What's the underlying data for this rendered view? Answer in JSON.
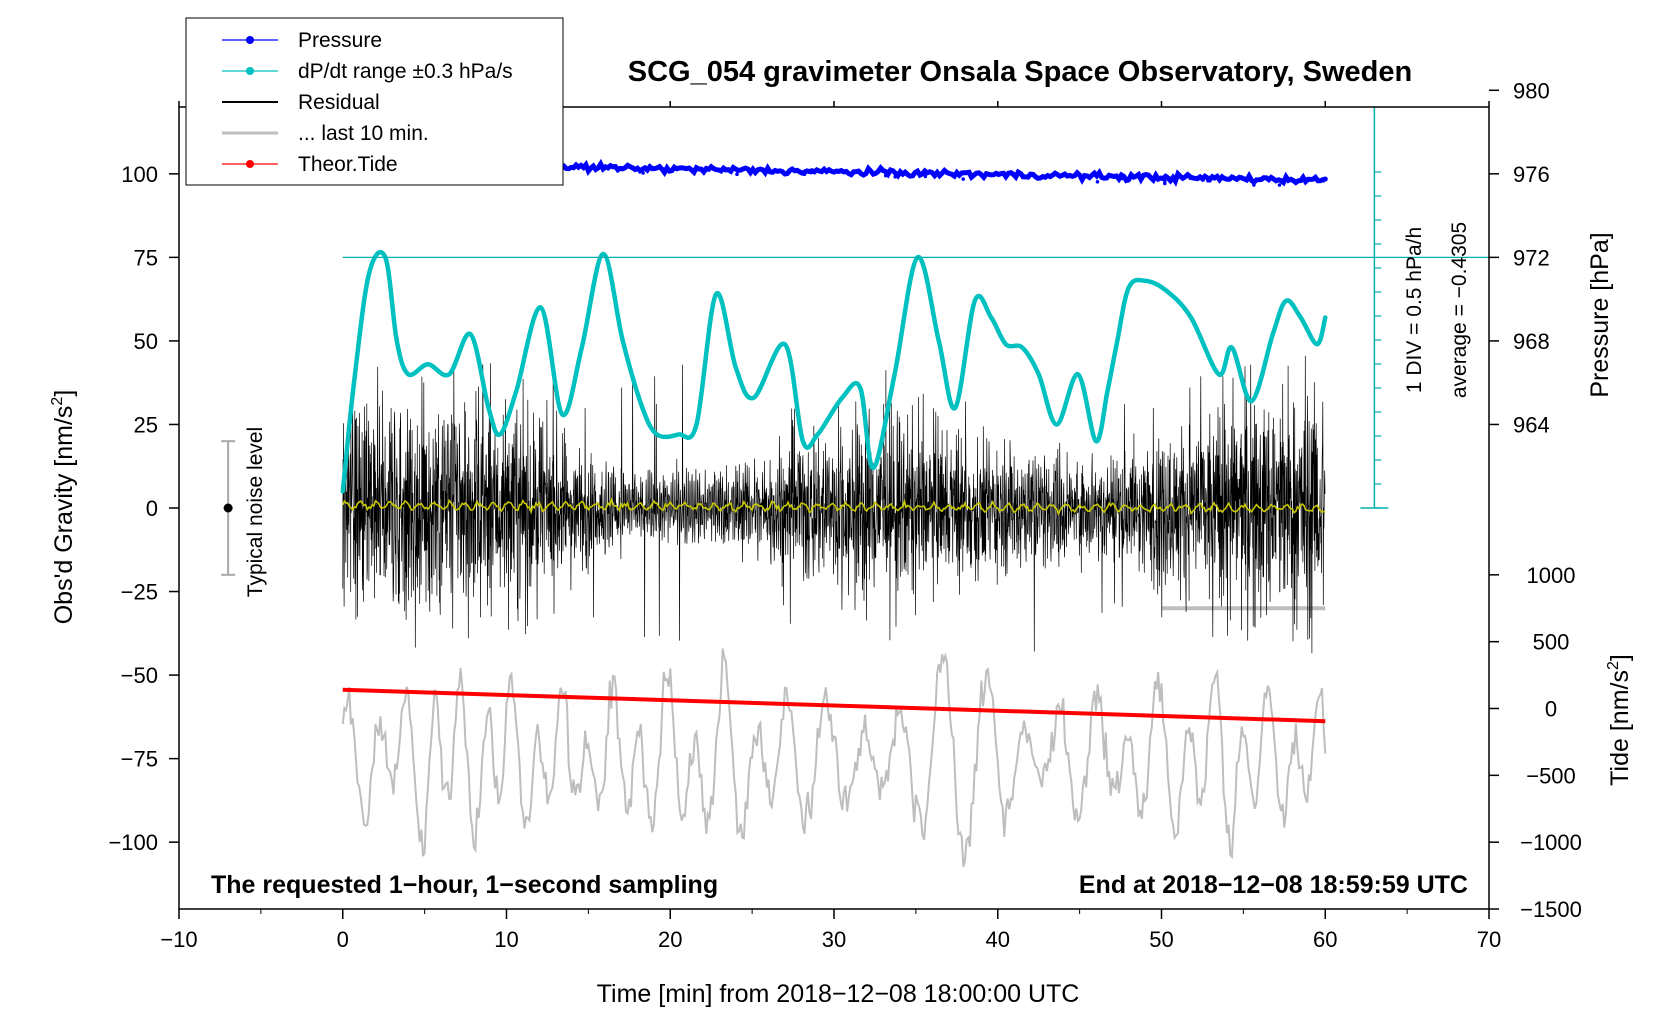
{
  "chart_data": {
    "type": "line",
    "title": "SCG_054 gravimeter Onsala Space Observatory, Sweden",
    "xlabel": "Time [min] from 2018−12−08 18:00:00 UTC",
    "xlim": [
      -10,
      70
    ],
    "x_ticks": [
      "−10",
      "0",
      "10",
      "20",
      "30",
      "40",
      "50",
      "60",
      "70"
    ],
    "y_left": {
      "label_prefix": "Obs'd Gravity [nm/s",
      "label_sup": "2",
      "label_suffix": "]",
      "ylim": [
        -120,
        120
      ],
      "ticks": [
        "−100",
        "−75",
        "−50",
        "−25",
        "0",
        "25",
        "50",
        "75",
        "100"
      ]
    },
    "y_right_pressure": {
      "label": "Pressure [hPa]",
      "ticks": [
        "964",
        "968",
        "972",
        "976",
        "980"
      ]
    },
    "y_right_tide": {
      "label_prefix": "Tide [nm/s",
      "label_sup": "2",
      "label_suffix": "]",
      "ticks": [
        "−1500",
        "−1000",
        "−500",
        "0",
        "500",
        "1000"
      ]
    },
    "legend": {
      "placement": "top-left",
      "entries": [
        {
          "label": "Pressure",
          "color": "#0000ff"
        },
        {
          "label": "dP/dt range ±0.3 hPa/s",
          "color": "#00c0c0"
        },
        {
          "label": "Residual",
          "color": "#000000"
        },
        {
          "label": "... last 10 min.",
          "color": "#bebebe"
        },
        {
          "label": "Theor.Tide",
          "color": "#ff0000"
        }
      ]
    },
    "annotations": {
      "left_bottom": "The requested 1−hour, 1−second sampling",
      "right_bottom": "End at 2018−12−08 18:59:59 UTC",
      "noise": "Typical noise level",
      "div": "1 DIV = 0.5 hPa/h",
      "average": "average = −0.4305"
    },
    "noise_bar": {
      "x": -7,
      "center": 0,
      "low": -20,
      "high": 20
    },
    "pressure_hpa": {
      "start": 976.5,
      "end": 975.7
    },
    "tide_nms2": {
      "start": 140,
      "end": -95
    },
    "dpdt_gravity_units": {
      "x": [
        0,
        0.7,
        1.6,
        2.6,
        3.3,
        4,
        5.2,
        6.5,
        7.8,
        8.9,
        9.6,
        10.6,
        12.1,
        13.4,
        14.6,
        15.9,
        17.1,
        18.3,
        19.2,
        20.5,
        21.6,
        22.8,
        24,
        25.1,
        27,
        28.1,
        29,
        30.5,
        31.6,
        32.4,
        33.7,
        35.1,
        36.4,
        37.4,
        38.6,
        39.6,
        40.5,
        41.5,
        42.5,
        43.6,
        44.9,
        46,
        46.7,
        47.3,
        48,
        49,
        50.3,
        51.8,
        53.5,
        54.3,
        55.5,
        56.8,
        57.6,
        58.5,
        59.5,
        60
      ],
      "y": [
        5,
        38,
        70,
        75,
        50,
        40,
        43,
        40,
        52,
        30,
        22,
        35,
        60,
        28,
        48,
        76,
        50,
        30,
        22,
        22,
        25,
        64,
        42,
        33,
        49,
        20,
        22,
        33,
        36,
        12,
        40,
        75,
        50,
        30,
        62,
        57,
        49,
        48,
        40,
        25,
        40,
        20,
        35,
        50,
        66,
        68,
        65,
        57,
        40,
        48,
        32,
        52,
        62,
        57,
        49,
        57
      ]
    },
    "residual_model": {
      "samples": 3600,
      "yellow_mean_amplitude": 1.5,
      "noise_amplitude": 15,
      "spike_amplitude": 40
    },
    "last10_model": {
      "baseline": -75,
      "amplitude": 25
    },
    "last10_bar": {
      "x_start": 50,
      "x_end": 60,
      "y": -30
    }
  }
}
